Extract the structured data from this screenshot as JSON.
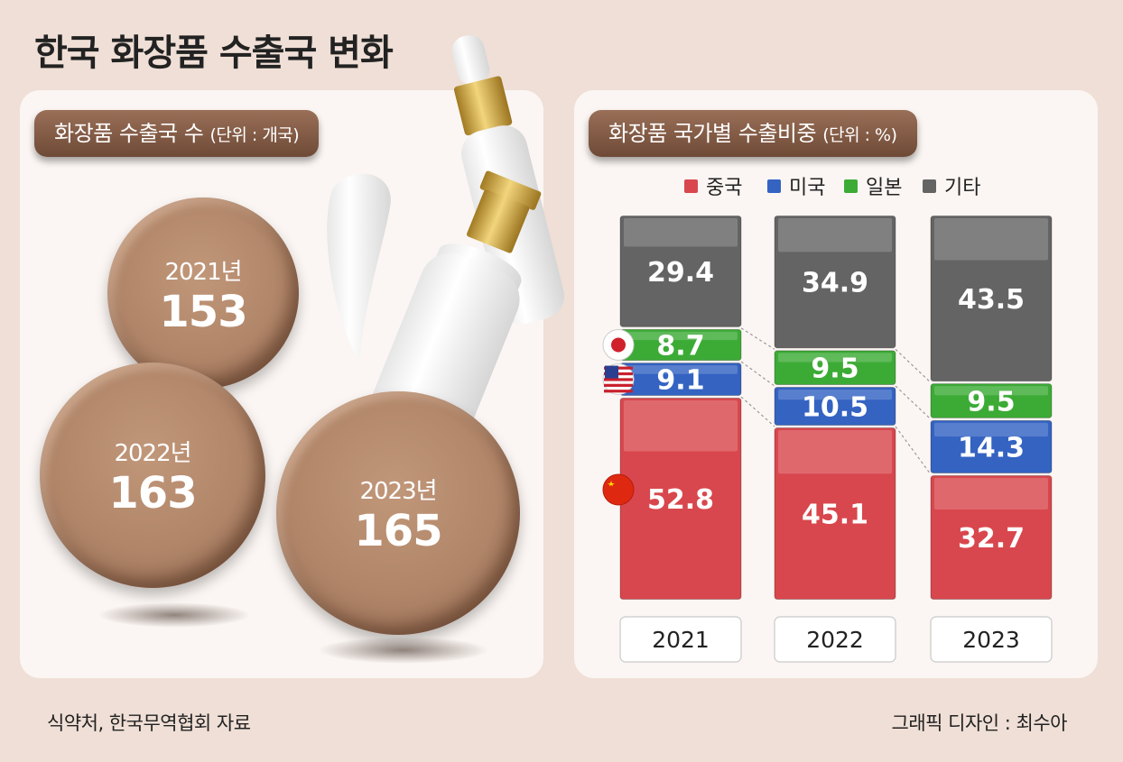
{
  "title": "한국 화장품 수출국 변화",
  "left": {
    "label": "화장품 수출국 수",
    "unit": "(단위 : 개국)",
    "items": [
      {
        "year": "2021년",
        "value": "153"
      },
      {
        "year": "2022년",
        "value": "163"
      },
      {
        "year": "2023년",
        "value": "165"
      }
    ]
  },
  "right": {
    "label": "화장품 국가별 수출비중",
    "unit": "(단위 : %)"
  },
  "chart_data": {
    "type": "bar",
    "stacked": true,
    "categories": [
      "2021",
      "2022",
      "2023"
    ],
    "series": [
      {
        "name": "중국",
        "values": [
          52.8,
          45.1,
          32.7
        ],
        "color": "#d8474d"
      },
      {
        "name": "미국",
        "values": [
          9.1,
          10.5,
          14.3
        ],
        "color": "#3463c2"
      },
      {
        "name": "일본",
        "values": [
          8.7,
          9.5,
          9.5
        ],
        "color": "#3cab36"
      },
      {
        "name": "기타",
        "values": [
          29.4,
          34.9,
          43.5
        ],
        "color": "#646464"
      }
    ],
    "legend": "top",
    "ylim": [
      0,
      100
    ]
  },
  "footer": {
    "source": "식약처, 한국무역협회 자료",
    "credit": "그래픽 디자인 : 최수아"
  }
}
